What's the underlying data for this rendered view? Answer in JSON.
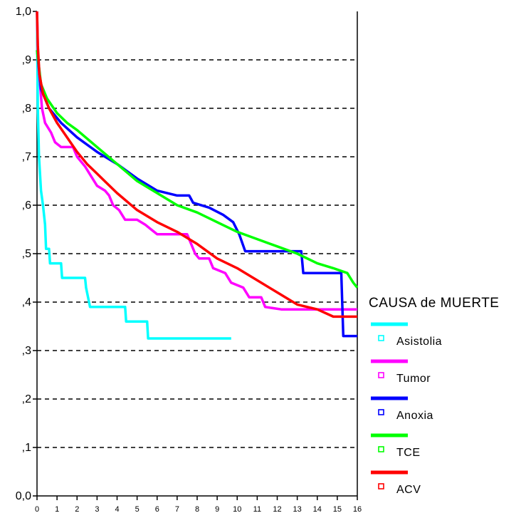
{
  "chart_data": {
    "type": "line",
    "xlim": [
      0,
      16
    ],
    "ylim": [
      0,
      1
    ],
    "x_ticks": [
      "0",
      "1",
      "2",
      "3",
      "4",
      "5",
      "6",
      "7",
      "8",
      "9",
      "10",
      "11",
      "12",
      "13",
      "14",
      "15",
      "16"
    ],
    "y_ticks": [
      "0,0",
      ",1",
      ",2",
      ",3",
      ",4",
      ",5",
      ",6",
      ",7",
      ",8",
      ",9",
      "1,0"
    ],
    "grid": "horizontal dashed",
    "legend": {
      "title": "CAUSA de MUERTE",
      "placement": "right"
    },
    "series": [
      {
        "name": "Asistolia",
        "color": "#00ffff",
        "points": [
          [
            0,
            1.0
          ],
          [
            0.04,
            0.8
          ],
          [
            0.1,
            0.7
          ],
          [
            0.2,
            0.63
          ],
          [
            0.3,
            0.6
          ],
          [
            0.4,
            0.56
          ],
          [
            0.45,
            0.51
          ],
          [
            0.6,
            0.51
          ],
          [
            0.65,
            0.48
          ],
          [
            1.2,
            0.48
          ],
          [
            1.25,
            0.45
          ],
          [
            2.4,
            0.45
          ],
          [
            2.45,
            0.43
          ],
          [
            2.55,
            0.41
          ],
          [
            2.65,
            0.39
          ],
          [
            4.4,
            0.39
          ],
          [
            4.45,
            0.36
          ],
          [
            5.5,
            0.36
          ],
          [
            5.55,
            0.325
          ],
          [
            9.7,
            0.325
          ]
        ]
      },
      {
        "name": "Tumor",
        "color": "#ff00ff",
        "points": [
          [
            0,
            1.0
          ],
          [
            0.05,
            0.9
          ],
          [
            0.15,
            0.85
          ],
          [
            0.25,
            0.8
          ],
          [
            0.4,
            0.77
          ],
          [
            0.7,
            0.75
          ],
          [
            0.9,
            0.73
          ],
          [
            1.2,
            0.72
          ],
          [
            1.8,
            0.72
          ],
          [
            2.0,
            0.7
          ],
          [
            2.4,
            0.68
          ],
          [
            2.7,
            0.66
          ],
          [
            3.0,
            0.64
          ],
          [
            3.4,
            0.63
          ],
          [
            3.6,
            0.62
          ],
          [
            3.8,
            0.6
          ],
          [
            4.1,
            0.59
          ],
          [
            4.4,
            0.57
          ],
          [
            5.0,
            0.57
          ],
          [
            5.4,
            0.56
          ],
          [
            5.7,
            0.55
          ],
          [
            6.0,
            0.54
          ],
          [
            7.5,
            0.54
          ],
          [
            7.7,
            0.52
          ],
          [
            7.9,
            0.5
          ],
          [
            8.1,
            0.49
          ],
          [
            8.6,
            0.49
          ],
          [
            8.8,
            0.47
          ],
          [
            9.4,
            0.46
          ],
          [
            9.7,
            0.44
          ],
          [
            10.3,
            0.43
          ],
          [
            10.6,
            0.41
          ],
          [
            11.2,
            0.41
          ],
          [
            11.4,
            0.39
          ],
          [
            12.2,
            0.385
          ],
          [
            16,
            0.385
          ]
        ]
      },
      {
        "name": "Anoxia",
        "color": "#0000ff",
        "points": [
          [
            0,
            0.92
          ],
          [
            0.2,
            0.84
          ],
          [
            0.6,
            0.8
          ],
          [
            1.2,
            0.77
          ],
          [
            2.0,
            0.74
          ],
          [
            3.0,
            0.71
          ],
          [
            4.0,
            0.685
          ],
          [
            5.0,
            0.655
          ],
          [
            6.0,
            0.63
          ],
          [
            7.0,
            0.62
          ],
          [
            7.6,
            0.62
          ],
          [
            7.8,
            0.605
          ],
          [
            8.6,
            0.595
          ],
          [
            9.3,
            0.58
          ],
          [
            9.8,
            0.565
          ],
          [
            10.1,
            0.54
          ],
          [
            10.4,
            0.505
          ],
          [
            13.2,
            0.505
          ],
          [
            13.3,
            0.46
          ],
          [
            15.2,
            0.46
          ],
          [
            15.3,
            0.33
          ],
          [
            16,
            0.33
          ]
        ]
      },
      {
        "name": "TCE",
        "color": "#00ff00",
        "points": [
          [
            0,
            0.92
          ],
          [
            0.2,
            0.85
          ],
          [
            0.5,
            0.82
          ],
          [
            1.0,
            0.79
          ],
          [
            1.5,
            0.77
          ],
          [
            2.0,
            0.755
          ],
          [
            3.0,
            0.72
          ],
          [
            4.0,
            0.685
          ],
          [
            5.0,
            0.65
          ],
          [
            6.0,
            0.625
          ],
          [
            7.0,
            0.6
          ],
          [
            8.0,
            0.585
          ],
          [
            9.0,
            0.565
          ],
          [
            10.0,
            0.545
          ],
          [
            11.0,
            0.53
          ],
          [
            12.0,
            0.515
          ],
          [
            13.0,
            0.5
          ],
          [
            14.0,
            0.48
          ],
          [
            14.8,
            0.47
          ],
          [
            15.5,
            0.46
          ],
          [
            15.8,
            0.44
          ],
          [
            16,
            0.43
          ]
        ]
      },
      {
        "name": "ACV",
        "color": "#ff0000",
        "points": [
          [
            0,
            1.0
          ],
          [
            0.04,
            0.93
          ],
          [
            0.12,
            0.87
          ],
          [
            0.3,
            0.83
          ],
          [
            0.6,
            0.8
          ],
          [
            1.0,
            0.77
          ],
          [
            1.5,
            0.74
          ],
          [
            2.0,
            0.71
          ],
          [
            2.5,
            0.685
          ],
          [
            3.0,
            0.665
          ],
          [
            3.5,
            0.645
          ],
          [
            4.0,
            0.625
          ],
          [
            5.0,
            0.59
          ],
          [
            6.0,
            0.565
          ],
          [
            7.0,
            0.545
          ],
          [
            8.0,
            0.52
          ],
          [
            9.0,
            0.49
          ],
          [
            10.0,
            0.47
          ],
          [
            11.0,
            0.445
          ],
          [
            12.0,
            0.42
          ],
          [
            13.0,
            0.395
          ],
          [
            14.0,
            0.385
          ],
          [
            14.8,
            0.37
          ],
          [
            16,
            0.37
          ]
        ]
      }
    ]
  }
}
